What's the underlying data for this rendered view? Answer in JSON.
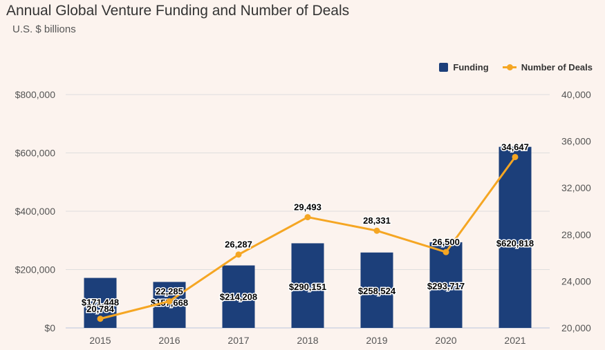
{
  "chart_data": {
    "type": "bar",
    "title": "Annual Global Venture Funding and Number of Deals",
    "subtitle": "U.S. $ billions",
    "categories": [
      "2015",
      "2016",
      "2017",
      "2018",
      "2019",
      "2020",
      "2021"
    ],
    "series": [
      {
        "name": "Funding",
        "type": "bar",
        "axis": "left",
        "color": "#1c3f7a",
        "values": [
          171448,
          157668,
          214208,
          290151,
          258524,
          293717,
          620818
        ],
        "labels": [
          "$171,448",
          "$157,668",
          "$214,208",
          "$290,151",
          "$258,524",
          "$293,717",
          "$620,818"
        ]
      },
      {
        "name": "Number of Deals",
        "type": "line",
        "axis": "right",
        "color": "#f5a623",
        "values": [
          20784,
          22285,
          26287,
          29493,
          28331,
          26500,
          34647
        ],
        "labels": [
          "20,784",
          "22,285",
          "26,287",
          "29,493",
          "28,331",
          "26,500",
          "34,647"
        ]
      }
    ],
    "y_left": {
      "range": [
        0,
        800000
      ],
      "ticks": [
        0,
        200000,
        400000,
        600000,
        800000
      ],
      "tick_labels": [
        "$0",
        "$200,000",
        "$400,000",
        "$600,000",
        "$800,000"
      ]
    },
    "y_right": {
      "range": [
        20000,
        40000
      ],
      "ticks": [
        20000,
        24000,
        28000,
        32000,
        36000,
        40000
      ],
      "tick_labels": [
        "20,000",
        "24,000",
        "28,000",
        "32,000",
        "36,000",
        "40,000"
      ]
    },
    "xlabel": "",
    "ylabel": "",
    "grid": true,
    "legend_position": "top-right"
  }
}
